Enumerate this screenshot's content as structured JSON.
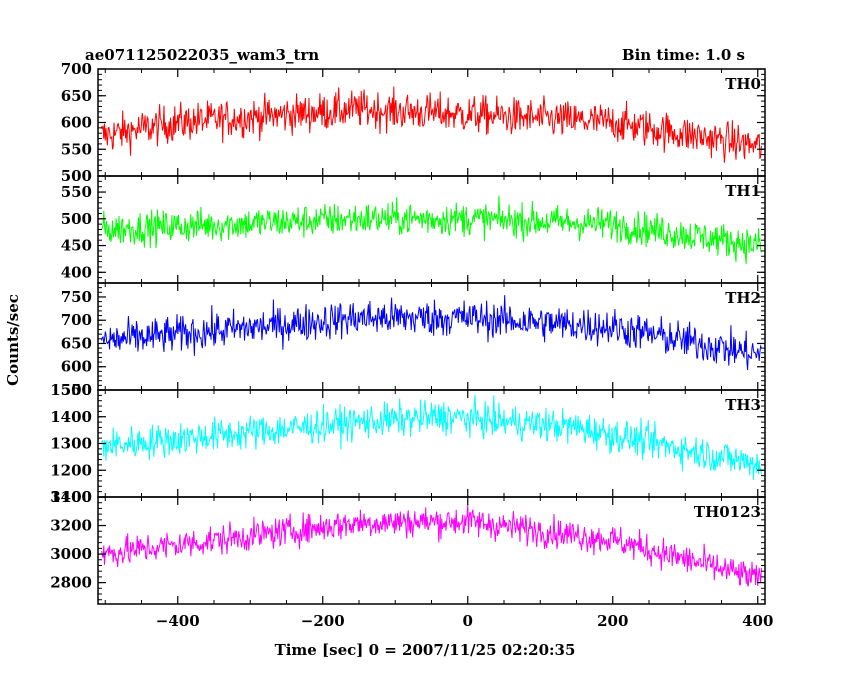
{
  "header": {
    "title": "ae071125022035_wam3_trn",
    "bin_time": "Bin time: 1.0 s"
  },
  "chart_data": {
    "type": "line",
    "ylabel": "Counts/sec",
    "xlabel": "Time [sec] 0 = 2007/11/25 02:20:35",
    "xlim": [
      -510,
      410
    ],
    "x_ticks": [
      -400,
      -200,
      0,
      200,
      400
    ],
    "x_tick_labels": [
      "−400",
      "−200",
      "0",
      "200",
      "400"
    ],
    "data_x_range": [
      -505,
      405
    ],
    "panels": [
      {
        "name": "TH0",
        "color": "#ff0000",
        "ylim": [
          500,
          700
        ],
        "y_ticks": [
          500,
          550,
          600,
          650,
          700
        ],
        "y_tick_labels": [
          "500",
          "550",
          "600",
          "650",
          "700"
        ],
        "trend": [
          [
            -505,
            575
          ],
          [
            -400,
            600
          ],
          [
            -150,
            625
          ],
          [
            0,
            615
          ],
          [
            200,
            600
          ],
          [
            405,
            555
          ]
        ],
        "noise": 25
      },
      {
        "name": "TH1",
        "color": "#00ff00",
        "ylim": [
          380,
          580
        ],
        "y_ticks": [
          400,
          450,
          500,
          550
        ],
        "y_tick_labels": [
          "400",
          "450",
          "500",
          "550"
        ],
        "trend": [
          [
            -505,
            480
          ],
          [
            -150,
            500
          ],
          [
            0,
            500
          ],
          [
            200,
            490
          ],
          [
            405,
            450
          ]
        ],
        "noise": 22
      },
      {
        "name": "TH2",
        "color": "#0000ff",
        "ylim": [
          550,
          780
        ],
        "y_ticks": [
          550,
          600,
          650,
          700,
          750
        ],
        "y_tick_labels": [
          "550",
          "600",
          "650",
          "700",
          "750"
        ],
        "trend": [
          [
            -505,
            655
          ],
          [
            -150,
            705
          ],
          [
            0,
            705
          ],
          [
            200,
            685
          ],
          [
            405,
            625
          ]
        ],
        "noise": 28
      },
      {
        "name": "TH3",
        "color": "#00ffff",
        "ylim": [
          1100,
          1500
        ],
        "y_ticks": [
          1100,
          1200,
          1300,
          1400,
          1500
        ],
        "y_tick_labels": [
          "1100",
          "1200",
          "1300",
          "1400",
          "1500"
        ],
        "trend": [
          [
            -505,
            1290
          ],
          [
            -150,
            1380
          ],
          [
            -30,
            1400
          ],
          [
            150,
            1360
          ],
          [
            405,
            1220
          ]
        ],
        "noise": 45
      },
      {
        "name": "TH0123",
        "color": "#ff00ff",
        "ylim": [
          2650,
          3400
        ],
        "y_ticks": [
          2800,
          3000,
          3200,
          3400
        ],
        "y_tick_labels": [
          "2800",
          "3000",
          "3200",
          "3400"
        ],
        "trend": [
          [
            -505,
            3000
          ],
          [
            -150,
            3220
          ],
          [
            0,
            3230
          ],
          [
            200,
            3100
          ],
          [
            405,
            2820
          ]
        ],
        "noise": 75
      }
    ]
  }
}
